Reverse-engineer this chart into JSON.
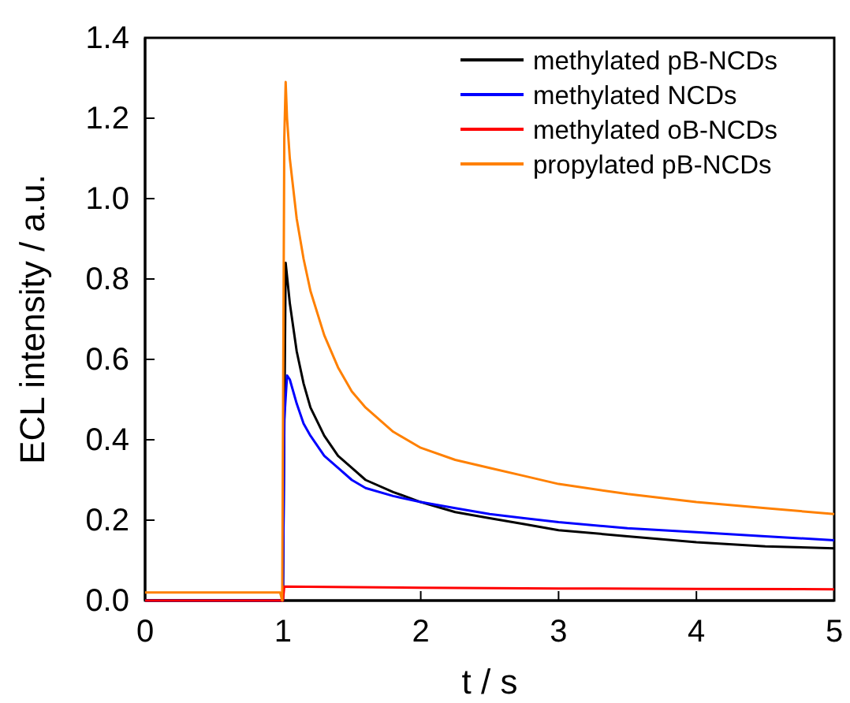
{
  "chart_data": {
    "type": "line",
    "xlabel": "t / s",
    "ylabel": "ECL intensity / a.u.",
    "legend": "top right",
    "grid": false,
    "xlim": [
      0,
      5
    ],
    "xticks": [
      0,
      1,
      2,
      3,
      4,
      5
    ],
    "ylim": [
      0,
      1.4
    ],
    "yticks": [
      {
        "value": 0,
        "label": "0.0"
      },
      {
        "value": 0.2,
        "label": "0.2"
      },
      {
        "value": 0.4,
        "label": "0.4"
      },
      {
        "value": 0.6,
        "label": "0.6"
      },
      {
        "value": 0.8,
        "label": "0.8"
      },
      {
        "value": 1.0,
        "label": "1.0"
      },
      {
        "value": 1.2,
        "label": "1.2"
      },
      {
        "value": 1.4,
        "label": "1.4"
      }
    ],
    "series": [
      {
        "name": "methylated pB-NCDs",
        "color": "#000000",
        "x": [
          0,
          0.99,
          1.0,
          1.02,
          1.05,
          1.1,
          1.15,
          1.2,
          1.3,
          1.4,
          1.5,
          1.6,
          1.8,
          2.0,
          2.25,
          2.5,
          2.75,
          3,
          3.5,
          4,
          4.5,
          5
        ],
        "values": [
          0.0,
          0.0,
          0.0,
          0.84,
          0.74,
          0.62,
          0.54,
          0.48,
          0.41,
          0.36,
          0.33,
          0.3,
          0.27,
          0.245,
          0.22,
          0.205,
          0.19,
          0.175,
          0.16,
          0.145,
          0.135,
          0.13
        ]
      },
      {
        "name": "methylated NCDs",
        "color": "#0000ff",
        "x": [
          0,
          0.99,
          1.0,
          1.01,
          1.03,
          1.05,
          1.1,
          1.15,
          1.2,
          1.3,
          1.4,
          1.5,
          1.6,
          1.8,
          2.0,
          2.25,
          2.5,
          2.75,
          3,
          3.5,
          4,
          4.5,
          5
        ],
        "values": [
          0.0,
          0.0,
          0.0,
          0.45,
          0.56,
          0.55,
          0.49,
          0.44,
          0.41,
          0.36,
          0.33,
          0.3,
          0.28,
          0.26,
          0.245,
          0.23,
          0.215,
          0.205,
          0.195,
          0.18,
          0.17,
          0.16,
          0.15
        ]
      },
      {
        "name": "methylated oB-NCDs",
        "color": "#ff0000",
        "x": [
          0,
          0.99,
          1.0,
          1.01,
          2,
          3,
          4,
          5
        ],
        "values": [
          0.0,
          0.0,
          0.0,
          0.035,
          0.032,
          0.03,
          0.029,
          0.028
        ]
      },
      {
        "name": "propylated pB-NCDs",
        "color": "#ff8000",
        "x": [
          0,
          0.98,
          0.995,
          1.01,
          1.02,
          1.03,
          1.05,
          1.1,
          1.15,
          1.2,
          1.3,
          1.4,
          1.5,
          1.6,
          1.8,
          2.0,
          2.25,
          2.5,
          2.75,
          3,
          3.5,
          4,
          4.5,
          5
        ],
        "values": [
          0.02,
          0.02,
          0.0,
          1.15,
          1.29,
          1.2,
          1.1,
          0.95,
          0.85,
          0.77,
          0.66,
          0.58,
          0.52,
          0.48,
          0.42,
          0.38,
          0.35,
          0.33,
          0.31,
          0.29,
          0.265,
          0.245,
          0.23,
          0.215
        ]
      }
    ]
  }
}
